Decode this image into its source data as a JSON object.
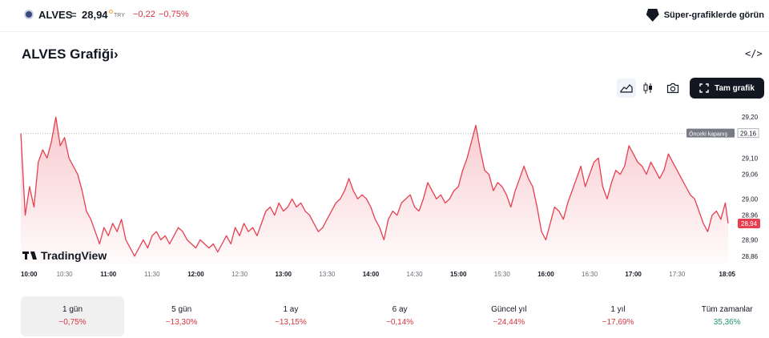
{
  "header": {
    "symbol": "ALVES",
    "separator": "=",
    "price": "28,94",
    "currency": "TRY",
    "change": "−0,22",
    "change_pct": "−0,75%",
    "super_charts_label": "Süper-grafiklerde görün"
  },
  "chart_header": {
    "title": "ALVES Grafiği",
    "chevron": "›",
    "embed_label": "</>",
    "full_chart_label": "Tam grafik"
  },
  "icons": {
    "symbol": "alves-logo-icon",
    "super_charts": "supercharts-icon",
    "area_style": "area-chart-icon",
    "candle_style": "candlestick-icon",
    "snapshot": "camera-icon",
    "fullscreen": "fullscreen-icon",
    "watermark": "tradingview-logo-icon"
  },
  "colors": {
    "line": "#e63f50",
    "negative": "#d6363f",
    "positive": "#22956a",
    "price_label_bg": "#e63f50",
    "prev_close_bg": "#787b86"
  },
  "watermark": {
    "text": "TradingView"
  },
  "chart_data": {
    "type": "area",
    "title": "",
    "xlabel": "",
    "ylabel": "",
    "x_start": "10:00",
    "x_end": "18:05",
    "x_tick_labels": [
      {
        "label": "10:00",
        "minutes": 0,
        "bold": true
      },
      {
        "label": "10:30",
        "minutes": 30,
        "bold": false
      },
      {
        "label": "11:00",
        "minutes": 60,
        "bold": true
      },
      {
        "label": "11:30",
        "minutes": 90,
        "bold": false
      },
      {
        "label": "12:00",
        "minutes": 120,
        "bold": true
      },
      {
        "label": "12:30",
        "minutes": 150,
        "bold": false
      },
      {
        "label": "13:00",
        "minutes": 180,
        "bold": true
      },
      {
        "label": "13:30",
        "minutes": 210,
        "bold": false
      },
      {
        "label": "14:00",
        "minutes": 240,
        "bold": true
      },
      {
        "label": "14:30",
        "minutes": 270,
        "bold": false
      },
      {
        "label": "15:00",
        "minutes": 300,
        "bold": true
      },
      {
        "label": "15:30",
        "minutes": 330,
        "bold": false
      },
      {
        "label": "16:00",
        "minutes": 360,
        "bold": true
      },
      {
        "label": "16:30",
        "minutes": 390,
        "bold": false
      },
      {
        "label": "17:00",
        "minutes": 420,
        "bold": true
      },
      {
        "label": "17:30",
        "minutes": 450,
        "bold": false
      },
      {
        "label": "18:05",
        "minutes": 485,
        "bold": true
      }
    ],
    "y_ticks": [
      "29,20",
      "29,10",
      "29,06",
      "29,00",
      "28,96",
      "28,90",
      "28,86"
    ],
    "y_tick_values": [
      29.2,
      29.1,
      29.06,
      29.0,
      28.96,
      28.9,
      28.86
    ],
    "ylim": [
      28.84,
      29.22
    ],
    "xlim_minutes": [
      0,
      485
    ],
    "previous_close": {
      "label": "Önceki kapanış",
      "value": 29.16,
      "display": "29,16"
    },
    "last_price": {
      "value": 28.94,
      "display": "28,94"
    },
    "series": [
      {
        "points": [
          [
            0,
            29.16
          ],
          [
            3,
            28.96
          ],
          [
            6,
            29.03
          ],
          [
            9,
            28.98
          ],
          [
            12,
            29.09
          ],
          [
            15,
            29.12
          ],
          [
            18,
            29.1
          ],
          [
            21,
            29.14
          ],
          [
            24,
            29.2
          ],
          [
            27,
            29.13
          ],
          [
            30,
            29.15
          ],
          [
            33,
            29.1
          ],
          [
            36,
            29.08
          ],
          [
            39,
            29.06
          ],
          [
            42,
            29.02
          ],
          [
            45,
            28.97
          ],
          [
            48,
            28.95
          ],
          [
            51,
            28.92
          ],
          [
            54,
            28.89
          ],
          [
            57,
            28.93
          ],
          [
            60,
            28.91
          ],
          [
            63,
            28.94
          ],
          [
            66,
            28.92
          ],
          [
            69,
            28.95
          ],
          [
            72,
            28.9
          ],
          [
            75,
            28.88
          ],
          [
            78,
            28.86
          ],
          [
            81,
            28.88
          ],
          [
            84,
            28.9
          ],
          [
            87,
            28.88
          ],
          [
            90,
            28.91
          ],
          [
            93,
            28.92
          ],
          [
            96,
            28.9
          ],
          [
            99,
            28.91
          ],
          [
            102,
            28.89
          ],
          [
            105,
            28.91
          ],
          [
            108,
            28.93
          ],
          [
            111,
            28.92
          ],
          [
            114,
            28.9
          ],
          [
            117,
            28.89
          ],
          [
            120,
            28.88
          ],
          [
            123,
            28.9
          ],
          [
            126,
            28.89
          ],
          [
            129,
            28.88
          ],
          [
            132,
            28.89
          ],
          [
            135,
            28.87
          ],
          [
            138,
            28.89
          ],
          [
            141,
            28.91
          ],
          [
            144,
            28.89
          ],
          [
            147,
            28.93
          ],
          [
            150,
            28.91
          ],
          [
            153,
            28.94
          ],
          [
            156,
            28.92
          ],
          [
            159,
            28.93
          ],
          [
            162,
            28.91
          ],
          [
            165,
            28.94
          ],
          [
            168,
            28.97
          ],
          [
            171,
            28.98
          ],
          [
            174,
            28.96
          ],
          [
            177,
            28.99
          ],
          [
            180,
            28.97
          ],
          [
            183,
            28.98
          ],
          [
            186,
            29.0
          ],
          [
            189,
            28.98
          ],
          [
            192,
            28.99
          ],
          [
            195,
            28.97
          ],
          [
            198,
            28.96
          ],
          [
            201,
            28.94
          ],
          [
            204,
            28.92
          ],
          [
            207,
            28.93
          ],
          [
            210,
            28.95
          ],
          [
            213,
            28.97
          ],
          [
            216,
            28.99
          ],
          [
            219,
            29.0
          ],
          [
            222,
            29.02
          ],
          [
            225,
            29.05
          ],
          [
            228,
            29.02
          ],
          [
            231,
            29.0
          ],
          [
            234,
            29.01
          ],
          [
            237,
            29.0
          ],
          [
            240,
            28.98
          ],
          [
            243,
            28.95
          ],
          [
            246,
            28.93
          ],
          [
            249,
            28.9
          ],
          [
            252,
            28.95
          ],
          [
            255,
            28.97
          ],
          [
            258,
            28.96
          ],
          [
            261,
            28.99
          ],
          [
            264,
            29.0
          ],
          [
            267,
            29.01
          ],
          [
            270,
            28.98
          ],
          [
            273,
            28.97
          ],
          [
            276,
            29.0
          ],
          [
            279,
            29.04
          ],
          [
            282,
            29.02
          ],
          [
            285,
            29.0
          ],
          [
            288,
            29.01
          ],
          [
            291,
            28.99
          ],
          [
            294,
            29.0
          ],
          [
            297,
            29.02
          ],
          [
            300,
            29.03
          ],
          [
            303,
            29.07
          ],
          [
            306,
            29.1
          ],
          [
            309,
            29.14
          ],
          [
            312,
            29.18
          ],
          [
            315,
            29.12
          ],
          [
            318,
            29.07
          ],
          [
            321,
            29.06
          ],
          [
            324,
            29.02
          ],
          [
            327,
            29.04
          ],
          [
            330,
            29.03
          ],
          [
            333,
            29.01
          ],
          [
            336,
            28.98
          ],
          [
            339,
            29.02
          ],
          [
            342,
            29.05
          ],
          [
            345,
            29.08
          ],
          [
            348,
            29.05
          ],
          [
            351,
            29.03
          ],
          [
            354,
            28.98
          ],
          [
            357,
            28.92
          ],
          [
            360,
            28.9
          ],
          [
            363,
            28.94
          ],
          [
            366,
            28.98
          ],
          [
            369,
            28.97
          ],
          [
            372,
            28.95
          ],
          [
            375,
            28.99
          ],
          [
            378,
            29.02
          ],
          [
            381,
            29.05
          ],
          [
            384,
            29.08
          ],
          [
            387,
            29.03
          ],
          [
            390,
            29.06
          ],
          [
            393,
            29.09
          ],
          [
            396,
            29.1
          ],
          [
            399,
            29.03
          ],
          [
            402,
            29.0
          ],
          [
            405,
            29.04
          ],
          [
            408,
            29.07
          ],
          [
            411,
            29.06
          ],
          [
            414,
            29.08
          ],
          [
            417,
            29.13
          ],
          [
            420,
            29.11
          ],
          [
            423,
            29.09
          ],
          [
            426,
            29.08
          ],
          [
            429,
            29.06
          ],
          [
            432,
            29.09
          ],
          [
            435,
            29.07
          ],
          [
            438,
            29.05
          ],
          [
            441,
            29.07
          ],
          [
            444,
            29.11
          ],
          [
            447,
            29.09
          ],
          [
            450,
            29.07
          ],
          [
            453,
            29.05
          ],
          [
            456,
            29.03
          ],
          [
            459,
            29.01
          ],
          [
            462,
            29.0
          ],
          [
            465,
            28.97
          ],
          [
            468,
            28.94
          ],
          [
            471,
            28.92
          ],
          [
            474,
            28.96
          ],
          [
            477,
            28.97
          ],
          [
            480,
            28.95
          ],
          [
            483,
            28.99
          ],
          [
            485,
            28.94
          ]
        ]
      }
    ]
  },
  "ranges": [
    {
      "label": "1 gün",
      "value": "−0,75%",
      "sign": "neg",
      "selected": true
    },
    {
      "label": "5 gün",
      "value": "−13,30%",
      "sign": "neg",
      "selected": false
    },
    {
      "label": "1 ay",
      "value": "−13,15%",
      "sign": "neg",
      "selected": false
    },
    {
      "label": "6 ay",
      "value": "−0,14%",
      "sign": "neg",
      "selected": false
    },
    {
      "label": "Güncel yıl",
      "value": "−24,44%",
      "sign": "neg",
      "selected": false
    },
    {
      "label": "1 yıl",
      "value": "−17,69%",
      "sign": "neg",
      "selected": false
    },
    {
      "label": "Tüm zamanlar",
      "value": "35,36%",
      "sign": "pos",
      "selected": false
    }
  ]
}
